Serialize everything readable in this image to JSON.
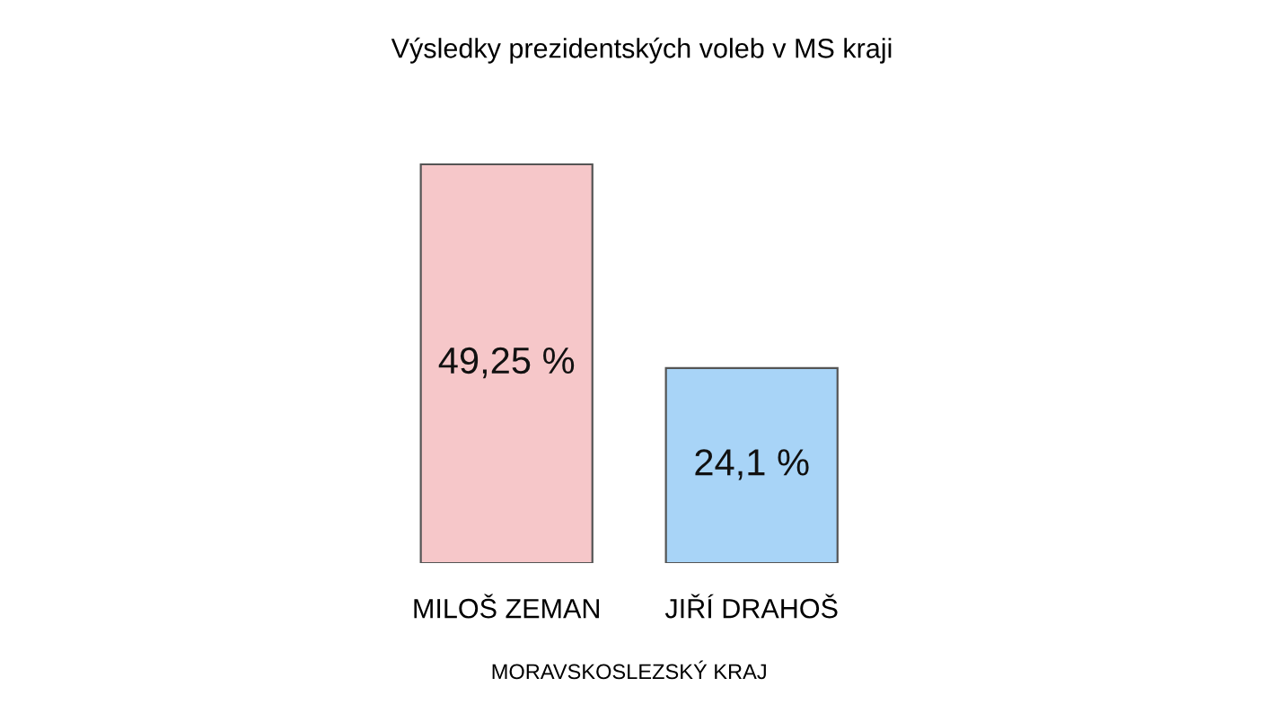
{
  "chart_data": {
    "type": "bar",
    "title": "Výsledky prezidentských voleb v MS kraji",
    "categories": [
      "MILOŠ ZEMAN",
      "JIŘÍ DRAHOŠ"
    ],
    "values": [
      49.25,
      24.1
    ],
    "colors": [
      "#f6c7c9",
      "#a8d4f7"
    ],
    "value_labels": [
      "49,25 %",
      "24,1 %"
    ],
    "xlabel": "MORAVSKOSLEZSKÝ KRAJ"
  }
}
